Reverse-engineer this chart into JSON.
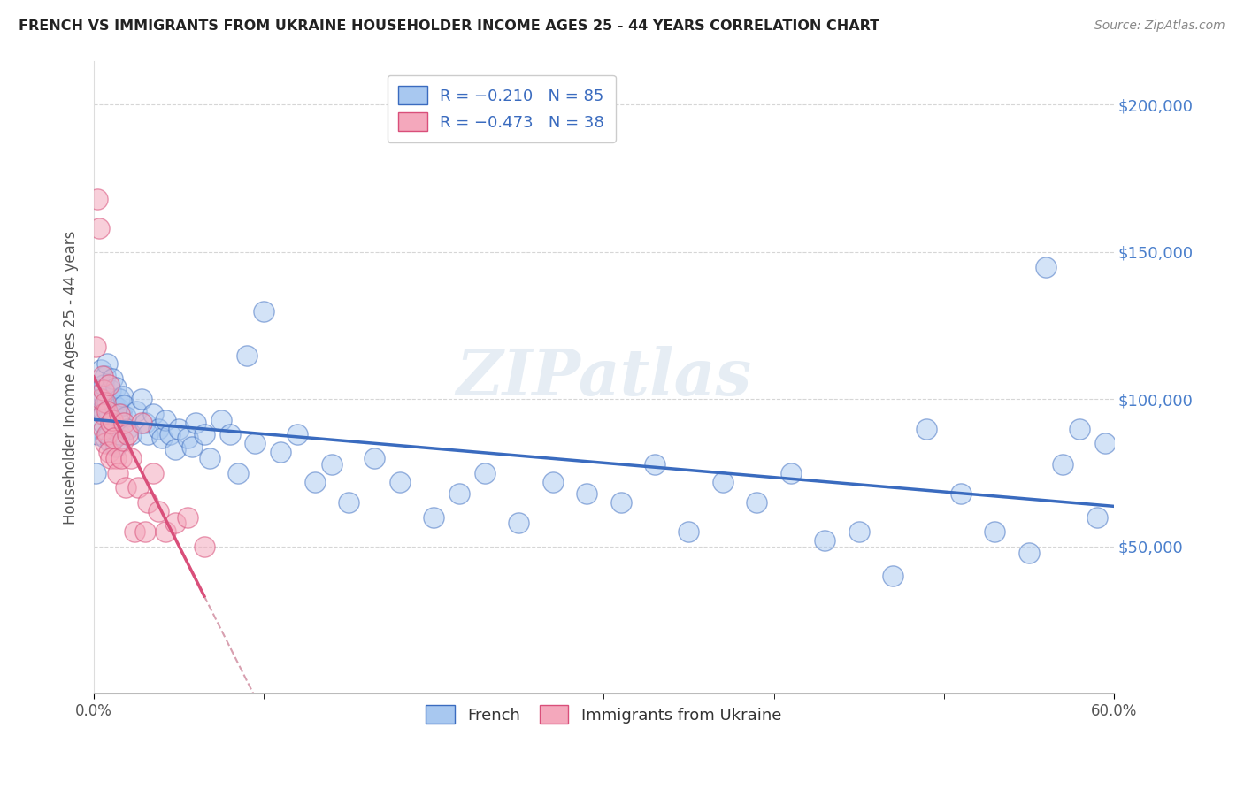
{
  "title": "FRENCH VS IMMIGRANTS FROM UKRAINE HOUSEHOLDER INCOME AGES 25 - 44 YEARS CORRELATION CHART",
  "source": "Source: ZipAtlas.com",
  "ylabel": "Householder Income Ages 25 - 44 years",
  "french_color": "#a8c8f0",
  "ukraine_color": "#f4a8bc",
  "french_line_color": "#3a6bbf",
  "ukraine_line_color": "#d94f7a",
  "dashed_line_color": "#d8a0b0",
  "ytick_color": "#4a7fcc",
  "background_color": "#ffffff",
  "grid_color": "#cccccc",
  "french_scatter_x": [
    0.001,
    0.002,
    0.003,
    0.004,
    0.004,
    0.005,
    0.005,
    0.006,
    0.006,
    0.007,
    0.007,
    0.008,
    0.008,
    0.009,
    0.009,
    0.01,
    0.01,
    0.011,
    0.011,
    0.012,
    0.012,
    0.013,
    0.013,
    0.014,
    0.015,
    0.015,
    0.016,
    0.017,
    0.018,
    0.019,
    0.02,
    0.022,
    0.025,
    0.028,
    0.03,
    0.032,
    0.035,
    0.038,
    0.04,
    0.042,
    0.045,
    0.048,
    0.05,
    0.055,
    0.058,
    0.06,
    0.065,
    0.068,
    0.075,
    0.08,
    0.085,
    0.09,
    0.095,
    0.1,
    0.11,
    0.12,
    0.13,
    0.14,
    0.15,
    0.165,
    0.18,
    0.2,
    0.215,
    0.23,
    0.25,
    0.27,
    0.29,
    0.31,
    0.33,
    0.35,
    0.37,
    0.39,
    0.41,
    0.43,
    0.45,
    0.47,
    0.49,
    0.51,
    0.53,
    0.55,
    0.56,
    0.57,
    0.58,
    0.59,
    0.595
  ],
  "french_scatter_y": [
    75000,
    88000,
    103000,
    97000,
    110000,
    100000,
    92000,
    105000,
    95000,
    108000,
    87000,
    99000,
    112000,
    96000,
    88000,
    103000,
    85000,
    107000,
    93000,
    98000,
    90000,
    104000,
    84000,
    97000,
    100000,
    88000,
    95000,
    101000,
    98000,
    94000,
    90000,
    88000,
    96000,
    100000,
    92000,
    88000,
    95000,
    90000,
    87000,
    93000,
    88000,
    83000,
    90000,
    87000,
    84000,
    92000,
    88000,
    80000,
    93000,
    88000,
    75000,
    115000,
    85000,
    130000,
    82000,
    88000,
    72000,
    78000,
    65000,
    80000,
    72000,
    60000,
    68000,
    75000,
    58000,
    72000,
    68000,
    65000,
    78000,
    55000,
    72000,
    65000,
    75000,
    52000,
    55000,
    40000,
    90000,
    68000,
    55000,
    48000,
    145000,
    78000,
    90000,
    60000,
    85000
  ],
  "ukraine_scatter_x": [
    0.001,
    0.002,
    0.003,
    0.004,
    0.005,
    0.005,
    0.006,
    0.006,
    0.007,
    0.007,
    0.008,
    0.008,
    0.009,
    0.009,
    0.01,
    0.01,
    0.011,
    0.012,
    0.013,
    0.014,
    0.015,
    0.016,
    0.017,
    0.018,
    0.019,
    0.02,
    0.022,
    0.024,
    0.026,
    0.028,
    0.03,
    0.032,
    0.035,
    0.038,
    0.042,
    0.048,
    0.055,
    0.065
  ],
  "ukraine_scatter_y": [
    118000,
    168000,
    158000,
    100000,
    108000,
    95000,
    103000,
    90000,
    99000,
    85000,
    96000,
    88000,
    105000,
    82000,
    92000,
    80000,
    93000,
    87000,
    80000,
    75000,
    95000,
    80000,
    86000,
    92000,
    70000,
    88000,
    80000,
    55000,
    70000,
    92000,
    55000,
    65000,
    75000,
    62000,
    55000,
    58000,
    60000,
    50000
  ],
  "xmin": 0.0,
  "xmax": 0.6,
  "ymin": 0,
  "ymax": 215000,
  "watermark": "ZIPatlas"
}
